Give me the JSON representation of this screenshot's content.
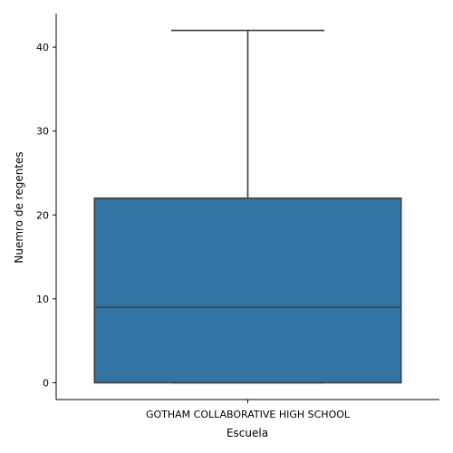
{
  "chart_data": {
    "type": "box",
    "xlabel": "Escuela",
    "ylabel": "Nuemro de regentes",
    "categories": [
      "GOTHAM COLLABORATIVE HIGH SCHOOL"
    ],
    "boxes": [
      {
        "category": "GOTHAM COLLABORATIVE HIGH SCHOOL",
        "whisker_low": 0,
        "q1": 0,
        "median": 9,
        "q3": 22,
        "whisker_high": 42
      }
    ],
    "ylim": [
      -2,
      44
    ],
    "yticks": [
      0,
      10,
      20,
      30,
      40
    ],
    "grid": false,
    "colors": {
      "box": "#3274a1",
      "line": "#3f3f3f",
      "axis": "#000000"
    }
  }
}
